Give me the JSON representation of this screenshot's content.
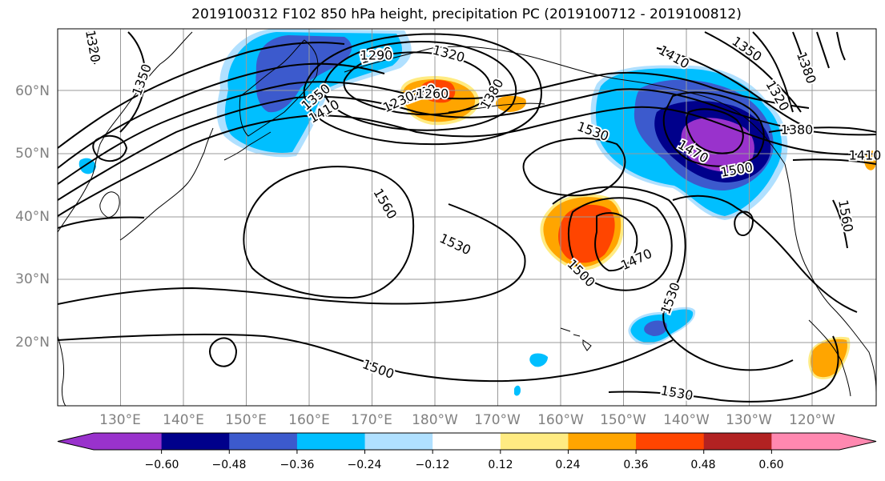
{
  "title": "2019100312 F102 850 hPa height, precipitation PC (2019100712 - 2019100812)",
  "latitude_labels": [
    "60°N",
    "50°N",
    "40°N",
    "30°N",
    "20°N"
  ],
  "longitude_labels": [
    "130°E",
    "140°E",
    "150°E",
    "160°E",
    "170°E",
    "180°W",
    "170°W",
    "160°W",
    "150°W",
    "140°W",
    "130°W",
    "120°W"
  ],
  "contour_labels": [
    "1320",
    "1350",
    "1290",
    "1320",
    "1410",
    "1350",
    "1260",
    "1290",
    "1230",
    "1260",
    "1380",
    "1350",
    "1410",
    "1530",
    "1320",
    "1380",
    "1560",
    "1470",
    "1500",
    "1530",
    "1500",
    "1470",
    "1530",
    "1500",
    "1530",
    "1560",
    "1380",
    "1410"
  ],
  "colorbar": {
    "tick_labels": [
      "−0.60",
      "−0.48",
      "−0.36",
      "−0.24",
      "−0.12",
      "0.12",
      "0.24",
      "0.36",
      "0.48",
      "0.60"
    ],
    "colors": [
      "#9932cc",
      "#00008b",
      "#3c5acd",
      "#00bfff",
      "#b0e0ff",
      "#ffffff",
      "#ffeb82",
      "#ffa500",
      "#ff4500",
      "#b22222",
      "#ff88b0"
    ]
  },
  "shading_colors": {
    "lightblue": "#b0e0ff",
    "deepskyblue": "#00bfff",
    "royalblue": "#3c5acd",
    "navy": "#00008b",
    "purple": "#9932cc",
    "lightyellow": "#ffeb82",
    "orange": "#ffa500",
    "orangered": "#ff4500"
  }
}
